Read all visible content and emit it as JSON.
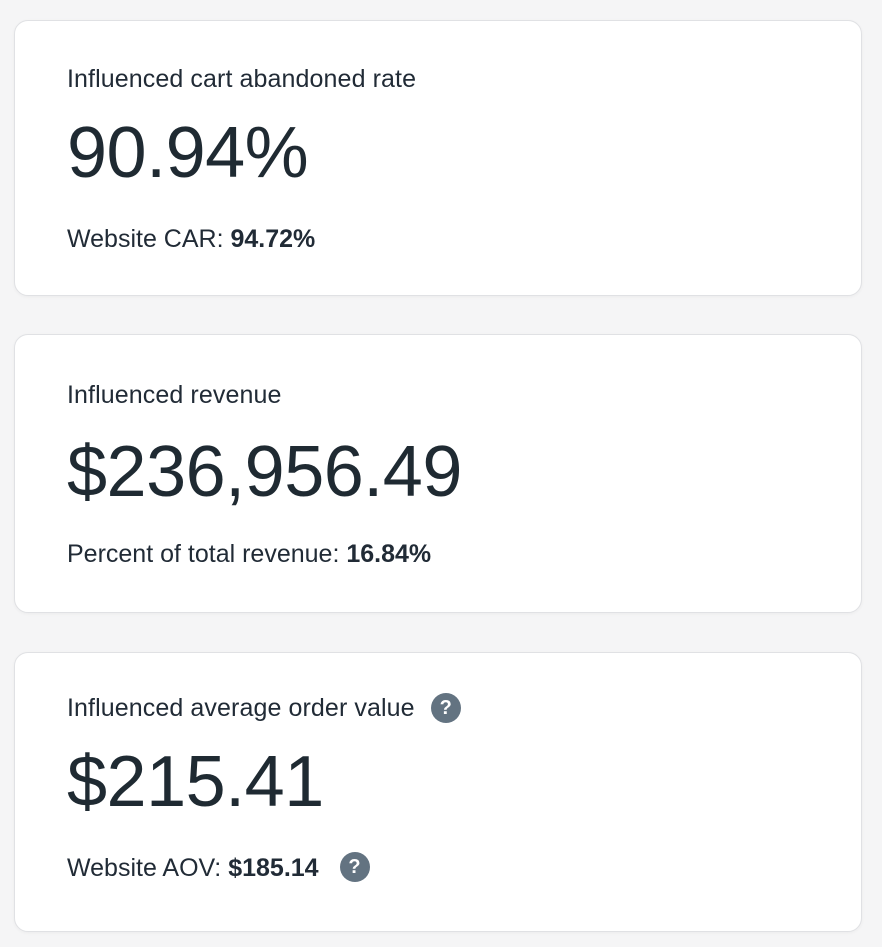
{
  "page": {
    "background": "#f5f5f6"
  },
  "colors": {
    "ink": "#212b36",
    "card_background": "#ffffff",
    "card_border": "#e0e1e4",
    "help_icon_background": "#637381",
    "help_icon_glyph_color": "#ffffff"
  },
  "icons": {
    "help_glyph": "?"
  },
  "cards": [
    {
      "title": "Influenced cart abandoned rate",
      "value": "90.94%",
      "subtitle_label": "Website CAR:",
      "subtitle_value": "94.72%"
    },
    {
      "title": "Influenced revenue",
      "value": "$236,956.49",
      "subtitle_label": "Percent of total revenue:",
      "subtitle_value": "16.84%"
    },
    {
      "title": "Influenced average order value",
      "value": "$215.41",
      "subtitle_label": "Website AOV:",
      "subtitle_value": "$185.14"
    }
  ]
}
